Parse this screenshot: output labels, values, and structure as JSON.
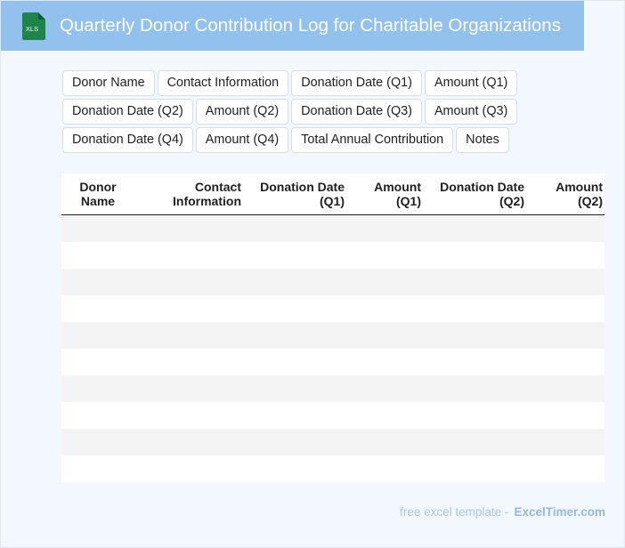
{
  "header": {
    "title": "Quarterly Donor Contribution Log for Charitable Organizations",
    "icon_label": "XLS",
    "icon_name": "excel-file-icon",
    "background": "#93c1ee",
    "icon_color": "#1e8449"
  },
  "chips": [
    [
      "Donor Name",
      "Contact Information",
      "Donation Date (Q1)",
      "Amount (Q1)"
    ],
    [
      "Donation Date (Q2)",
      "Amount (Q2)",
      "Donation Date (Q3)",
      "Amount (Q3)"
    ],
    [
      "Donation Date (Q4)",
      "Amount (Q4)",
      "Total Annual Contribution",
      "Notes"
    ]
  ],
  "table": {
    "headers": [
      [
        "Donor",
        "Name"
      ],
      [
        "Contact",
        "Information"
      ],
      [
        "Donation Date",
        "(Q1)"
      ],
      [
        "Amount",
        "(Q1)"
      ],
      [
        "Donation Date",
        "(Q2)"
      ],
      [
        "Amount",
        "(Q2)"
      ]
    ],
    "rows": [
      [
        "",
        "",
        "",
        "",
        "",
        ""
      ],
      [
        "",
        "",
        "",
        "",
        "",
        ""
      ],
      [
        "",
        "",
        "",
        "",
        "",
        ""
      ],
      [
        "",
        "",
        "",
        "",
        "",
        ""
      ],
      [
        "",
        "",
        "",
        "",
        "",
        ""
      ],
      [
        "",
        "",
        "",
        "",
        "",
        ""
      ],
      [
        "",
        "",
        "",
        "",
        "",
        ""
      ],
      [
        "",
        "",
        "",
        "",
        "",
        ""
      ],
      [
        "",
        "",
        "",
        "",
        "",
        ""
      ],
      [
        "",
        "",
        "",
        "",
        "",
        ""
      ]
    ]
  },
  "footer": {
    "text": "free excel template -",
    "brand": "ExcelTimer.com"
  }
}
